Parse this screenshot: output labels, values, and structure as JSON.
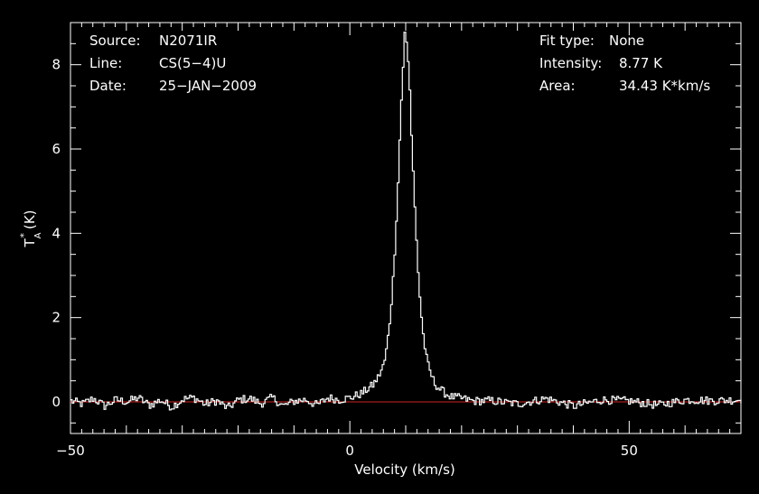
{
  "info": {
    "source_label": "Source:",
    "source_value": "N2071IR",
    "line_label": "Line:",
    "line_value": "CS(5−4)U",
    "date_label": "Date:",
    "date_value": "25−JAN−2009",
    "fit_label": "Fit type:",
    "fit_value": "None",
    "intensity_label": "Intensity:",
    "intensity_value": "8.77 K",
    "area_label": "Area:",
    "area_value": "34.43 K*km/s"
  },
  "chart_data": {
    "type": "line",
    "title": "",
    "xlabel": "Velocity (km/s)",
    "ylabel_main": "T",
    "ylabel_sup": "*",
    "ylabel_sub": "A",
    "ylabel_unit": "(K)",
    "xlim": [
      -50,
      70
    ],
    "ylim": [
      -0.75,
      9.0
    ],
    "grid": false,
    "x_ticks": [
      -50,
      0,
      50
    ],
    "x_tick_labels": [
      "−50",
      "0",
      "50"
    ],
    "y_ticks": [
      0,
      2,
      4,
      6,
      8
    ],
    "y_tick_labels": [
      "0",
      "2",
      "4",
      "6",
      "8"
    ],
    "background_color": "#000000",
    "axis_color": "#ffffff",
    "baseline": {
      "y": 0,
      "color": "#cc2222"
    },
    "series": [
      {
        "color": "#ffffff",
        "peak_velocity": 9.8,
        "peak_intensity": 8.77,
        "velocity_step": 0.3,
        "velocities": [
          -50,
          -48,
          -46,
          -44,
          -42,
          -40,
          -38,
          -36,
          -34,
          -32,
          -30,
          -28,
          -26,
          -24,
          -22,
          -20,
          -18,
          -16,
          -14,
          -12,
          -10,
          -8,
          -6,
          -4,
          -2,
          0,
          1,
          2,
          3,
          4,
          5,
          6,
          6.5,
          7,
          7.5,
          8,
          8.5,
          9,
          9.5,
          9.8,
          10.2,
          10.6,
          11,
          11.5,
          12,
          12.5,
          13,
          13.5,
          14,
          15,
          16,
          17,
          18,
          20,
          22,
          25,
          30,
          35,
          40,
          45,
          50,
          55,
          60,
          65,
          70
        ],
        "intensities": [
          0.02,
          -0.05,
          0.08,
          -0.1,
          0.05,
          0.0,
          0.1,
          -0.08,
          0.04,
          -0.12,
          0.06,
          0.1,
          -0.06,
          0.03,
          -0.15,
          0.05,
          0.08,
          -0.04,
          0.1,
          -0.1,
          0.02,
          0.05,
          -0.08,
          0.1,
          0.05,
          0.1,
          0.15,
          0.2,
          0.3,
          0.4,
          0.6,
          0.9,
          1.3,
          1.9,
          2.7,
          3.8,
          5.2,
          6.9,
          8.2,
          8.77,
          8.3,
          7.4,
          6.0,
          4.6,
          3.3,
          2.3,
          1.6,
          1.1,
          0.8,
          0.45,
          0.3,
          0.2,
          0.12,
          0.08,
          0.02,
          0.03,
          -0.05,
          0.08,
          -0.1,
          0.05,
          0.02,
          -0.08,
          0.05,
          0.03,
          0.05
        ]
      }
    ]
  }
}
